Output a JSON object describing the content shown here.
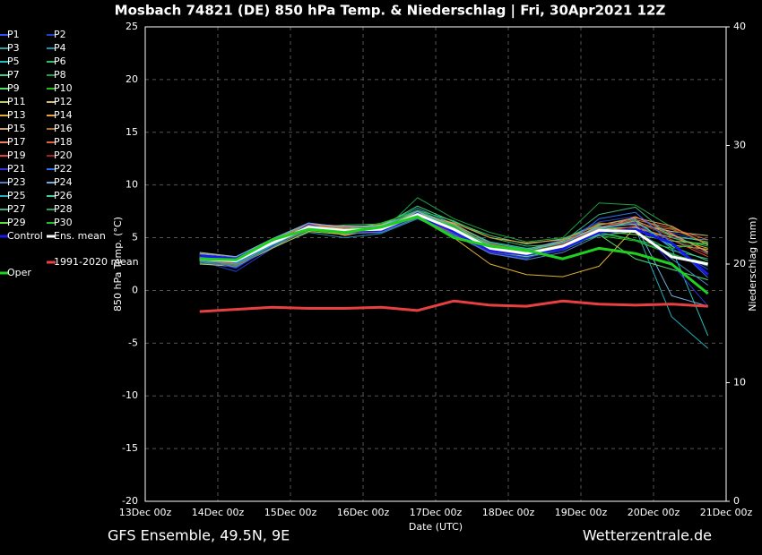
{
  "chart_data": {
    "type": "line",
    "title": "Mosbach 74821 (DE)  850 hPa Temp. & Niederschlag | Fri, 30Apr2021 12Z",
    "y_label": "850 hPa Temp. (°C)",
    "y2_label": "Niederschlag (mm)",
    "x_label": "Date (UTC)",
    "footer_left": "GFS Ensemble, 49.5N, 9E",
    "footer_right": "Wetterzentrale.de",
    "xlim": [
      0,
      192
    ],
    "xticks": [
      {
        "value": 0,
        "label": "13Dec 00z"
      },
      {
        "value": 24,
        "label": "14Dec 00z"
      },
      {
        "value": 48,
        "label": "15Dec 00z"
      },
      {
        "value": 72,
        "label": "16Dec 00z"
      },
      {
        "value": 96,
        "label": "17Dec 00z"
      },
      {
        "value": 120,
        "label": "18Dec 00z"
      },
      {
        "value": 144,
        "label": "19Dec 00z"
      },
      {
        "value": 168,
        "label": "20Dec 00z"
      },
      {
        "value": 192,
        "label": "21Dec 00z"
      }
    ],
    "ylim": [
      -20,
      25
    ],
    "yticks": [
      -20,
      -15,
      -10,
      -5,
      0,
      5,
      10,
      15,
      20,
      25
    ],
    "y2lim": [
      0,
      40
    ],
    "y2ticks": [
      0,
      10,
      20,
      30,
      40
    ],
    "grid": true,
    "x": [
      18,
      30,
      42,
      54,
      66,
      78,
      90,
      102,
      114,
      126,
      138,
      150,
      162,
      174,
      186
    ],
    "series": [
      {
        "name": "P1",
        "color": "#3050ff",
        "width": 1,
        "values": [
          3.2,
          2.5,
          4.3,
          6.2,
          5.5,
          6.0,
          7.0,
          5.5,
          3.5,
          3.0,
          4.5,
          6.0,
          6.5,
          4.0,
          2.0
        ]
      },
      {
        "name": "P2",
        "color": "#2040d0",
        "width": 1,
        "values": [
          2.8,
          1.8,
          4.0,
          6.4,
          5.9,
          5.6,
          7.5,
          6.0,
          4.3,
          3.9,
          4.8,
          6.5,
          7.0,
          5.5,
          4.5
        ]
      },
      {
        "name": "P3",
        "color": "#30a0a0",
        "width": 1,
        "values": [
          3.5,
          2.9,
          4.6,
          5.8,
          5.3,
          6.2,
          7.8,
          6.3,
          4.4,
          3.7,
          4.6,
          5.9,
          6.0,
          4.8,
          3.5
        ]
      },
      {
        "name": "P4",
        "color": "#2090b0",
        "width": 1,
        "values": [
          2.6,
          2.2,
          4.1,
          5.5,
          5.0,
          5.4,
          6.8,
          5.2,
          3.6,
          3.2,
          3.8,
          5.4,
          5.9,
          5.0,
          4.8
        ]
      },
      {
        "name": "P5",
        "color": "#20c0c0",
        "width": 1,
        "values": [
          3.1,
          2.7,
          4.4,
          6.1,
          5.8,
          5.9,
          7.3,
          6.2,
          4.6,
          4.0,
          4.3,
          6.2,
          6.8,
          4.0,
          -4.3
        ]
      },
      {
        "name": "P6",
        "color": "#30c060",
        "width": 1,
        "values": [
          2.9,
          2.6,
          4.5,
          6.0,
          6.2,
          6.3,
          7.6,
          6.6,
          5.0,
          4.2,
          4.4,
          6.1,
          5.5,
          3.8,
          3.0
        ]
      },
      {
        "name": "P7",
        "color": "#40d080",
        "width": 1,
        "values": [
          3.4,
          3.1,
          4.9,
          6.3,
          5.9,
          6.1,
          8.0,
          6.5,
          5.2,
          4.4,
          4.9,
          6.3,
          6.4,
          5.2,
          4.6
        ]
      },
      {
        "name": "P8",
        "color": "#20a040",
        "width": 1,
        "values": [
          2.7,
          2.4,
          4.2,
          5.7,
          5.4,
          5.5,
          8.8,
          6.8,
          5.5,
          4.6,
          5.0,
          8.3,
          8.1,
          6.0,
          4.4
        ]
      },
      {
        "name": "P9",
        "color": "#50e070",
        "width": 1,
        "values": [
          3.0,
          2.6,
          4.3,
          6.0,
          5.6,
          5.8,
          7.0,
          5.6,
          3.8,
          3.2,
          4.0,
          5.3,
          3.0,
          2.0,
          1.0
        ]
      },
      {
        "name": "P10",
        "color": "#20c020",
        "width": 1,
        "values": [
          3.2,
          2.9,
          4.6,
          5.9,
          5.7,
          6.4,
          7.5,
          6.1,
          4.3,
          3.6,
          4.1,
          5.2,
          4.7,
          3.4,
          2.6
        ]
      },
      {
        "name": "P11",
        "color": "#c0d040",
        "width": 1,
        "values": [
          2.5,
          2.3,
          4.0,
          5.6,
          5.3,
          5.7,
          7.1,
          5.9,
          4.1,
          3.4,
          4.2,
          5.8,
          6.0,
          4.3,
          3.9
        ]
      },
      {
        "name": "P12",
        "color": "#d0c070",
        "width": 1,
        "values": [
          3.6,
          3.2,
          4.8,
          6.2,
          6.0,
          6.2,
          7.4,
          6.3,
          4.5,
          3.9,
          4.7,
          6.0,
          6.3,
          5.6,
          5.2
        ]
      },
      {
        "name": "P13",
        "color": "#e0b030",
        "width": 1,
        "values": [
          2.9,
          2.5,
          4.4,
          5.8,
          5.5,
          5.6,
          6.9,
          5.0,
          2.5,
          1.5,
          1.3,
          2.3,
          6.0,
          5.0,
          4.0
        ]
      },
      {
        "name": "P14",
        "color": "#f0a040",
        "width": 1,
        "values": [
          3.3,
          3.0,
          4.7,
          6.1,
          5.2,
          5.9,
          7.3,
          6.4,
          5.0,
          4.5,
          4.8,
          6.2,
          6.9,
          6.1,
          4.3
        ]
      },
      {
        "name": "P15",
        "color": "#d0a070",
        "width": 1,
        "values": [
          3.0,
          2.8,
          4.5,
          6.3,
          5.8,
          6.0,
          7.4,
          6.2,
          4.2,
          3.7,
          4.3,
          5.9,
          6.6,
          5.3,
          3.7
        ]
      },
      {
        "name": "P16",
        "color": "#b07030",
        "width": 1,
        "values": [
          2.8,
          2.4,
          4.1,
          5.9,
          5.6,
          5.8,
          7.2,
          5.9,
          4.4,
          3.8,
          4.5,
          6.4,
          6.2,
          5.8,
          4.5
        ]
      },
      {
        "name": "P17",
        "color": "#f08060",
        "width": 1,
        "values": [
          3.4,
          3.1,
          4.6,
          6.3,
          6.1,
          6.1,
          7.0,
          5.7,
          4.0,
          3.4,
          4.2,
          5.7,
          7.0,
          5.4,
          3.6
        ]
      },
      {
        "name": "P18",
        "color": "#e06040",
        "width": 1,
        "values": [
          3.1,
          2.8,
          4.5,
          6.2,
          5.9,
          5.8,
          7.1,
          5.8,
          4.1,
          3.6,
          4.4,
          6.0,
          6.7,
          5.9,
          4.8
        ]
      },
      {
        "name": "P19",
        "color": "#e04040",
        "width": 1,
        "values": [
          2.9,
          2.6,
          4.3,
          5.9,
          5.4,
          5.6,
          6.9,
          5.4,
          3.7,
          3.3,
          4.0,
          5.5,
          6.1,
          4.8,
          3.2
        ]
      },
      {
        "name": "P20",
        "color": "#a02020",
        "width": 1,
        "values": [
          3.2,
          2.9,
          4.7,
          6.0,
          5.7,
          5.9,
          7.3,
          5.9,
          4.2,
          3.7,
          4.4,
          6.0,
          6.5,
          5.1,
          3.4
        ]
      },
      {
        "name": "P21",
        "color": "#3030e0",
        "width": 1,
        "values": [
          3.0,
          2.1,
          4.2,
          6.3,
          5.4,
          5.5,
          7.4,
          5.4,
          3.6,
          3.1,
          3.8,
          5.8,
          6.4,
          2.5,
          -1.5
        ]
      },
      {
        "name": "P22",
        "color": "#3070f0",
        "width": 1,
        "values": [
          3.3,
          2.6,
          4.4,
          6.1,
          5.6,
          5.6,
          7.2,
          5.8,
          3.9,
          3.3,
          4.1,
          6.8,
          7.4,
          4.5,
          1.2
        ]
      },
      {
        "name": "P23",
        "color": "#5080c0",
        "width": 1,
        "values": [
          2.7,
          2.3,
          4.1,
          5.8,
          5.4,
          5.5,
          6.9,
          5.3,
          3.5,
          2.9,
          3.6,
          5.2,
          5.6,
          3.0,
          0.5
        ]
      },
      {
        "name": "P24",
        "color": "#70b0e0",
        "width": 1,
        "values": [
          3.5,
          3.2,
          4.9,
          6.4,
          6.0,
          6.1,
          7.5,
          6.0,
          4.3,
          3.8,
          4.5,
          6.0,
          6.3,
          -0.5,
          -1.5
        ]
      },
      {
        "name": "P25",
        "color": "#20b0c0",
        "width": 1,
        "values": [
          2.8,
          2.5,
          4.3,
          5.9,
          5.5,
          5.7,
          7.0,
          5.5,
          3.8,
          3.4,
          4.0,
          5.5,
          5.9,
          -2.5,
          -5.5
        ]
      },
      {
        "name": "P26",
        "color": "#40d0a0",
        "width": 1,
        "values": [
          3.1,
          2.7,
          4.6,
          6.0,
          5.7,
          5.8,
          7.3,
          6.0,
          4.1,
          3.6,
          4.3,
          5.8,
          6.6,
          4.2,
          2.8
        ]
      },
      {
        "name": "P27",
        "color": "#40b080",
        "width": 1,
        "values": [
          3.0,
          2.8,
          4.4,
          6.1,
          5.8,
          5.9,
          7.6,
          6.2,
          4.5,
          3.9,
          4.6,
          7.2,
          7.9,
          5.0,
          4.2
        ]
      },
      {
        "name": "P28",
        "color": "#30a060",
        "width": 1,
        "values": [
          3.2,
          2.9,
          4.5,
          5.9,
          5.6,
          5.7,
          7.1,
          5.7,
          4.0,
          3.5,
          4.1,
          5.4,
          4.8,
          3.5,
          2.3
        ]
      },
      {
        "name": "P29",
        "color": "#60e040",
        "width": 1,
        "values": [
          2.9,
          2.7,
          4.5,
          6.0,
          5.7,
          5.8,
          7.0,
          5.6,
          3.9,
          3.3,
          4.2,
          5.6,
          5.3,
          4.7,
          4.4
        ]
      },
      {
        "name": "P30",
        "color": "#20c030",
        "width": 1,
        "values": [
          3.1,
          2.8,
          4.6,
          6.1,
          5.8,
          6.0,
          7.3,
          6.0,
          4.2,
          3.7,
          4.3,
          5.5,
          4.8,
          4.0,
          4.5
        ]
      },
      {
        "name": "Control",
        "color": "#1818e8",
        "width": 3,
        "values": [
          3.3,
          3.0,
          4.7,
          5.9,
          5.6,
          5.7,
          7.1,
          5.6,
          3.8,
          3.4,
          4.0,
          5.5,
          5.8,
          4.5,
          1.5
        ]
      },
      {
        "name": "Ens. mean",
        "color": "#ffffff",
        "width": 3,
        "values": [
          3.0,
          2.8,
          4.5,
          6.0,
          5.7,
          5.8,
          7.2,
          5.8,
          4.0,
          3.5,
          4.2,
          5.7,
          5.6,
          3.2,
          2.5
        ]
      },
      {
        "name": "1991-2020 mean",
        "color": "#e84040",
        "width": 3,
        "values": [
          -2.0,
          -1.8,
          -1.6,
          -1.7,
          -1.7,
          -1.6,
          -1.9,
          -1.0,
          -1.4,
          -1.5,
          -1.0,
          -1.3,
          -1.4,
          -1.3,
          -1.5
        ]
      },
      {
        "name": "Oper",
        "color": "#20d020",
        "width": 3,
        "values": [
          3.0,
          2.9,
          4.8,
          5.8,
          5.5,
          6.0,
          7.0,
          5.0,
          4.2,
          3.8,
          3.0,
          4.0,
          3.5,
          2.5,
          -0.3
        ]
      }
    ]
  }
}
